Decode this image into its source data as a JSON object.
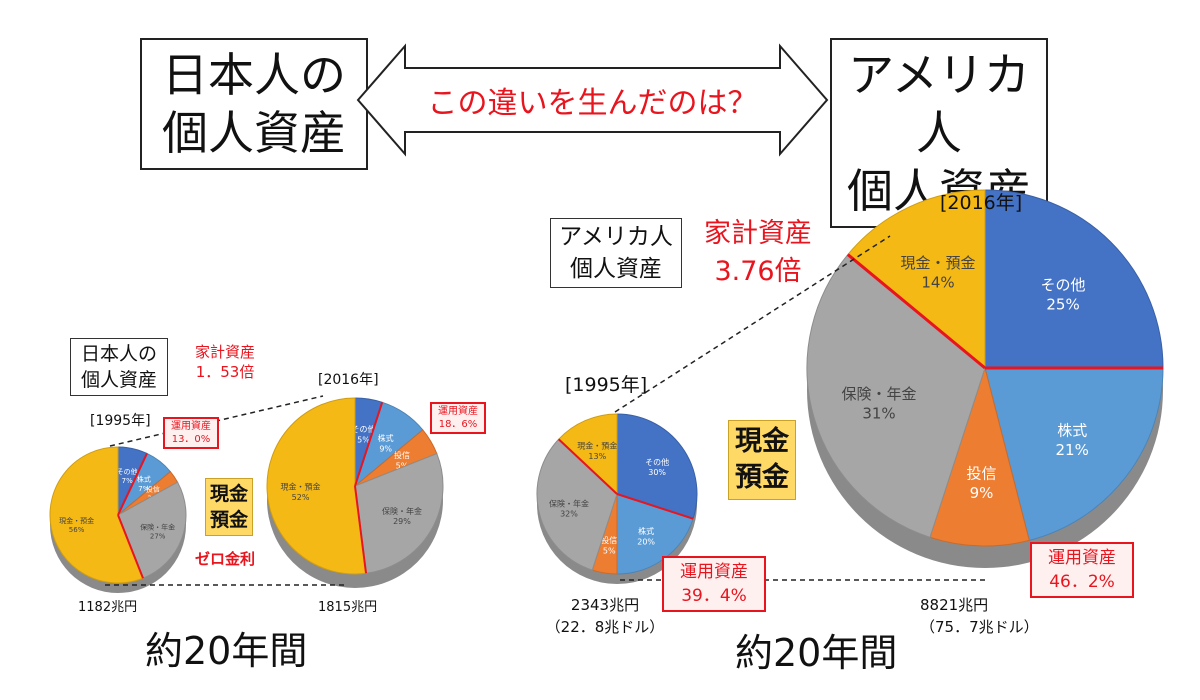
{
  "header": {
    "left_box": [
      "日本人の",
      "個人資産"
    ],
    "arrow_text": "この違いを生んだのは？",
    "right_box": [
      "アメリカ人",
      "個人資産"
    ]
  },
  "japan": {
    "title": [
      "日本人の",
      "個人資産"
    ],
    "growth_label": "家計資産",
    "growth_value": "1．53倍",
    "year_1995": "[1995年]",
    "year_2016": "[2016年]",
    "cash_label": [
      "現金",
      "預金"
    ],
    "zero_rate": "ゼロ金利",
    "total_1995": "1182兆円",
    "total_2016": "1815兆円",
    "period": "約20年間",
    "invest_1995": [
      "運用資産",
      "13．0%"
    ],
    "invest_2016": [
      "運用資産",
      "18．6%"
    ]
  },
  "usa": {
    "title": [
      "アメリカ人",
      "個人資産"
    ],
    "growth_label": "家計資産",
    "growth_value": "3.76倍",
    "year_1995": "[1995年]",
    "year_2016": "[2016年]",
    "cash_label": [
      "現金",
      "預金"
    ],
    "total_1995": "2343兆円",
    "total_1995_usd": "（22．8兆ドル）",
    "total_2016": "8821兆円",
    "total_2016_usd": "（75．7兆ドル）",
    "period": "約20年間",
    "invest_1995": [
      "運用資産",
      "39．4%"
    ],
    "invest_2016": [
      "運用資産",
      "46．2%"
    ]
  },
  "colors": {
    "cash": "#f5b915",
    "insurance": "#a6a6a6",
    "stocks": "#5b9bd5",
    "trusts": "#ed7d31",
    "other": "#4472c4",
    "accent": "#e8141e"
  },
  "chart_data": [
    {
      "type": "pie",
      "title": "日本人の個人資産 [1995年]",
      "total": "1182兆円",
      "categories": [
        "その他",
        "株式",
        "投信",
        "保険・年金",
        "現金・預金"
      ],
      "labels": [
        "その他 7%",
        "株式 7%",
        "投信 3%",
        "保険・年金 27%",
        "現金・預金 56%"
      ],
      "values": [
        7,
        7,
        3,
        27,
        56
      ]
    },
    {
      "type": "pie",
      "title": "日本人の個人資産 [2016年]",
      "total": "1815兆円",
      "categories": [
        "その他",
        "株式",
        "投信",
        "保険・年金",
        "現金・預金"
      ],
      "labels": [
        "その他 5%",
        "株式 9%",
        "投信 5%",
        "保険・年金 29%",
        "現金・預金 52%"
      ],
      "values": [
        5,
        9,
        5,
        29,
        52
      ]
    },
    {
      "type": "pie",
      "title": "アメリカ人個人資産 [1995年]",
      "total": "2343兆円",
      "categories": [
        "その他",
        "株式",
        "投信",
        "保険・年金",
        "現金・預金"
      ],
      "labels": [
        "その他 30%",
        "株式 20%",
        "投信 5%",
        "保険・年金 32%",
        "現金・預金 13%"
      ],
      "values": [
        30,
        20,
        5,
        32,
        13
      ]
    },
    {
      "type": "pie",
      "title": "アメリカ人個人資産 [2016年]",
      "total": "8821兆円",
      "categories": [
        "その他",
        "株式",
        "投信",
        "保険・年金",
        "現金・預金"
      ],
      "labels": [
        "その他 25%",
        "株式 21%",
        "投信 9%",
        "保険・年金 31%",
        "現金・預金 14%"
      ],
      "values": [
        25,
        21,
        9,
        31,
        14
      ]
    }
  ]
}
